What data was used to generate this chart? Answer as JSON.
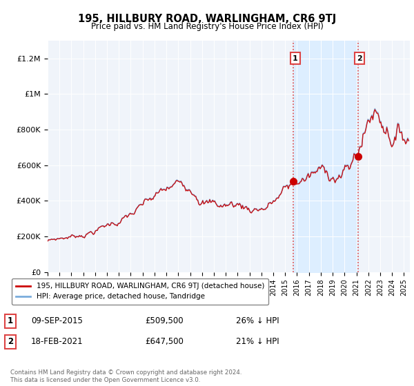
{
  "title": "195, HILLBURY ROAD, WARLINGHAM, CR6 9TJ",
  "subtitle": "Price paid vs. HM Land Registry's House Price Index (HPI)",
  "ylabel_ticks": [
    "£0",
    "£200K",
    "£400K",
    "£600K",
    "£800K",
    "£1M",
    "£1.2M"
  ],
  "ytick_values": [
    0,
    200000,
    400000,
    600000,
    800000,
    1000000,
    1200000
  ],
  "ylim": [
    0,
    1300000
  ],
  "xlim_start": 1995.0,
  "xlim_end": 2025.5,
  "sale1_date": 2015.69,
  "sale1_price": 509500,
  "sale1_label": "1",
  "sale2_date": 2021.12,
  "sale2_price": 647500,
  "sale2_label": "2",
  "red_line_color": "#cc0000",
  "blue_line_color": "#7aacdc",
  "shaded_region_color": "#ddeeff",
  "vline_color": "#dd4444",
  "legend_label_red": "195, HILLBURY ROAD, WARLINGHAM, CR6 9TJ (detached house)",
  "legend_label_blue": "HPI: Average price, detached house, Tandridge",
  "table_row1": [
    "1",
    "09-SEP-2015",
    "£509,500",
    "26% ↓ HPI"
  ],
  "table_row2": [
    "2",
    "18-FEB-2021",
    "£647,500",
    "21% ↓ HPI"
  ],
  "footer": "Contains HM Land Registry data © Crown copyright and database right 2024.\nThis data is licensed under the Open Government Licence v3.0.",
  "background_color": "#ffffff",
  "plot_bg_color": "#f0f4fa"
}
